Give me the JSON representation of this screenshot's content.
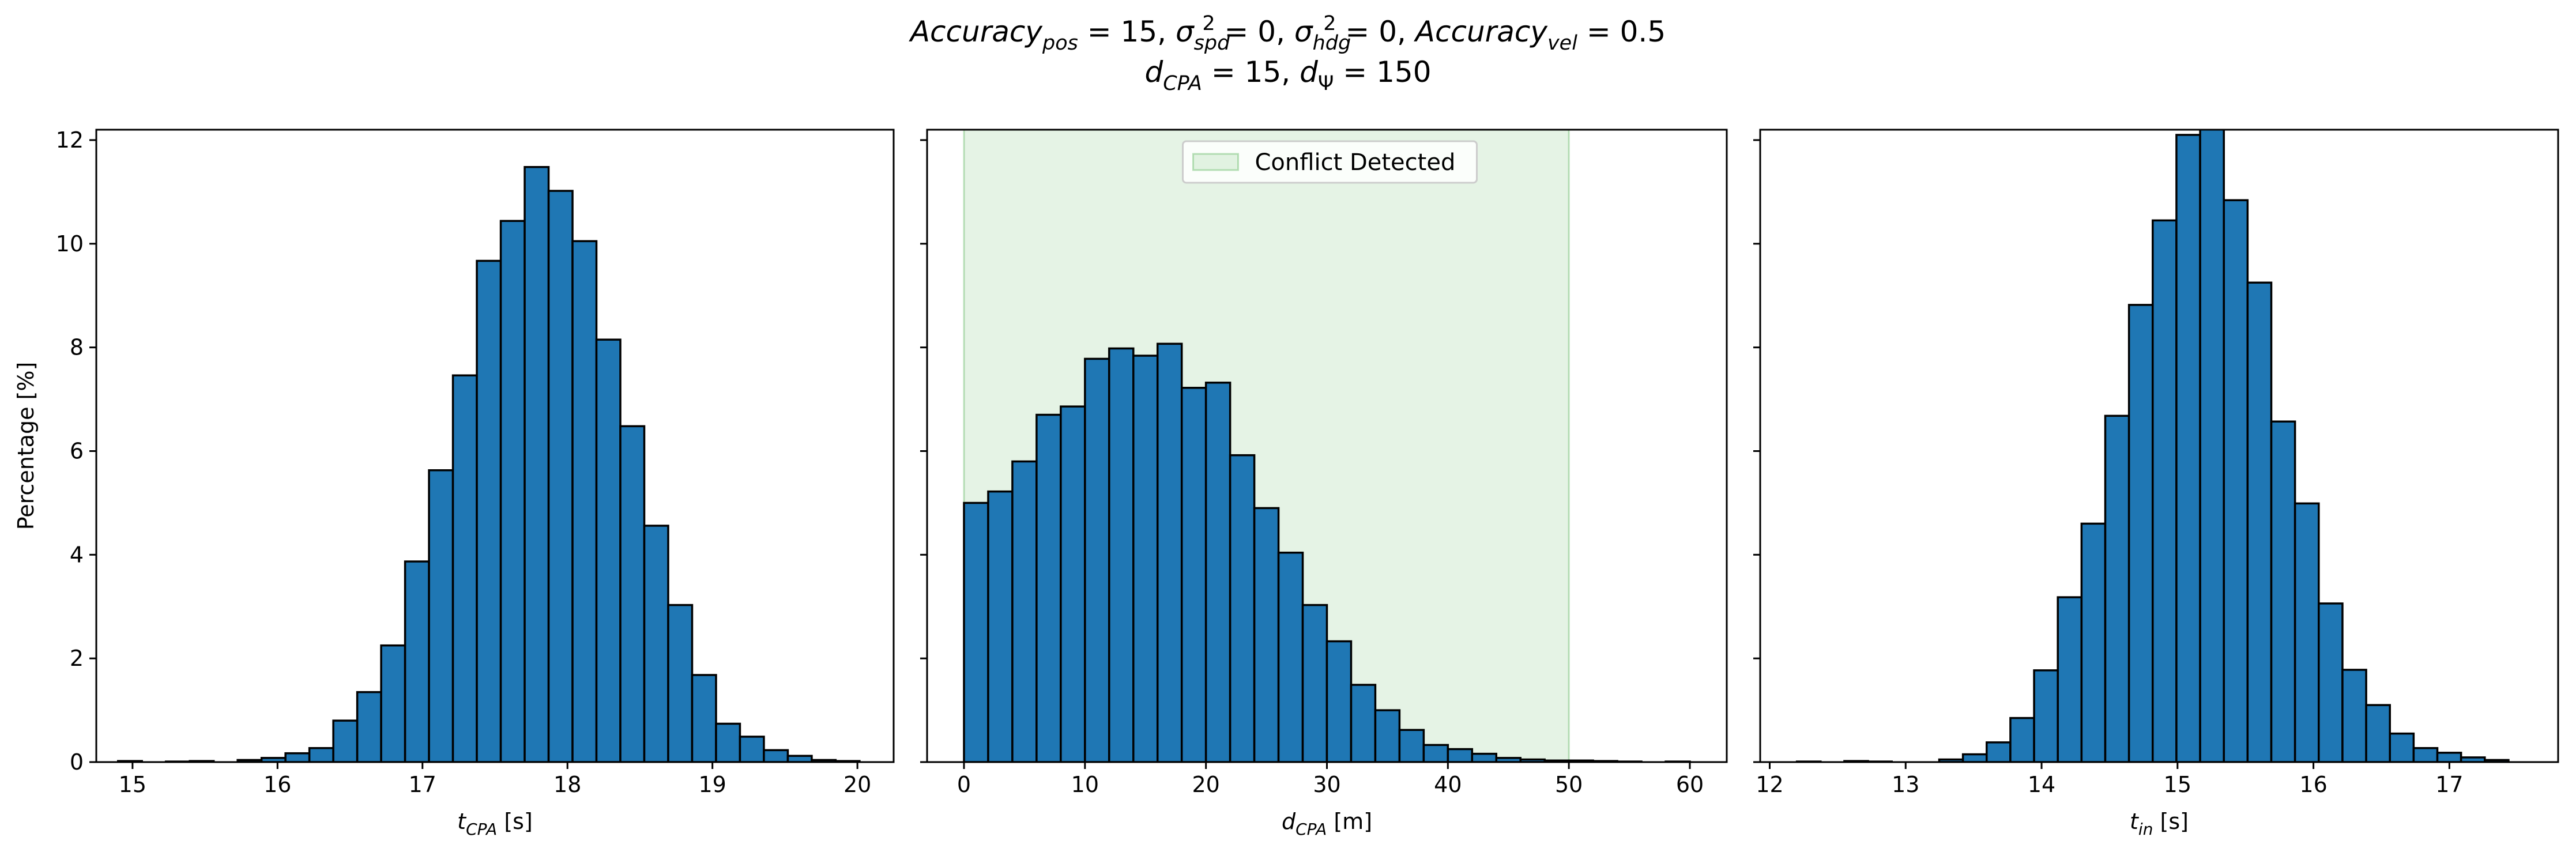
{
  "title": {
    "line1_parts": [
      {
        "t": "Accuracy",
        "style": "italic"
      },
      {
        "t": "pos",
        "style": "italic-sub"
      },
      {
        "t": " = 15, ",
        "style": "normal"
      },
      {
        "t": "σ",
        "style": "italic"
      },
      {
        "t": "spd",
        "style": "italic-sub"
      },
      {
        "t": "2",
        "style": "sup"
      },
      {
        "t": " = 0, ",
        "style": "normal"
      },
      {
        "t": "σ",
        "style": "italic"
      },
      {
        "t": "hdg",
        "style": "italic-sub"
      },
      {
        "t": "2",
        "style": "sup"
      },
      {
        "t": " = 0, ",
        "style": "normal"
      },
      {
        "t": "Accuracy",
        "style": "italic"
      },
      {
        "t": "vel",
        "style": "italic-sub"
      },
      {
        "t": " = 0.5",
        "style": "normal"
      }
    ],
    "line2_parts": [
      {
        "t": "d",
        "style": "italic"
      },
      {
        "t": "CPA",
        "style": "italic-sub"
      },
      {
        "t": " = 15, ",
        "style": "normal"
      },
      {
        "t": "d",
        "style": "italic"
      },
      {
        "t": "Ψ",
        "style": "sub"
      },
      {
        "t": " = 150",
        "style": "normal"
      }
    ]
  },
  "colors": {
    "bar": "#1f77b4",
    "span": "#2ca02c"
  },
  "chart_data": [
    {
      "type": "bar",
      "xlabel_main": "t",
      "xlabel_sub": "CPA",
      "xlabel_unit": " [s]",
      "ylabel": "Percentage [%]",
      "xlim": [
        14.75,
        20.25
      ],
      "ylim": [
        0,
        12.2
      ],
      "xticks": [
        15,
        16,
        17,
        18,
        19,
        20
      ],
      "yticks": [
        0,
        2,
        4,
        6,
        8,
        10,
        12
      ],
      "show_yticklabels": true,
      "bin_start": 14.9,
      "bin_width": 0.165,
      "values": [
        0.02,
        0.0,
        0.01,
        0.02,
        0.0,
        0.04,
        0.08,
        0.17,
        0.27,
        0.8,
        1.35,
        2.25,
        3.87,
        5.63,
        7.46,
        9.67,
        10.44,
        11.48,
        11.02,
        10.05,
        8.15,
        6.48,
        4.56,
        3.03,
        1.68,
        0.74,
        0.49,
        0.23,
        0.12,
        0.04,
        0.02
      ]
    },
    {
      "type": "bar",
      "xlabel_main": "d",
      "xlabel_sub": "CPA",
      "xlabel_unit": " [m]",
      "ylabel": "",
      "xlim": [
        -3.05,
        63.05
      ],
      "ylim": [
        0,
        12.2
      ],
      "xticks": [
        0,
        10,
        20,
        30,
        40,
        50,
        60
      ],
      "yticks": [
        0,
        2,
        4,
        6,
        8,
        10,
        12
      ],
      "show_yticklabels": false,
      "bin_start": 0,
      "bin_width": 2.0,
      "values": [
        5.0,
        5.22,
        5.8,
        6.7,
        6.86,
        7.78,
        7.98,
        7.84,
        8.07,
        7.22,
        7.32,
        5.92,
        4.9,
        4.04,
        3.03,
        2.33,
        1.49,
        1.0,
        0.62,
        0.33,
        0.25,
        0.16,
        0.08,
        0.05,
        0.03,
        0.03,
        0.02,
        0.01,
        0.0,
        0.01
      ],
      "span": [
        0,
        50
      ],
      "legend": "Conflict Detected",
      "legend_position": "upper center"
    },
    {
      "type": "bar",
      "xlabel_main": "t",
      "xlabel_sub": "in",
      "xlabel_unit": " [s]",
      "ylabel": "",
      "xlim": [
        11.93,
        17.8
      ],
      "ylim": [
        0,
        12.2
      ],
      "xticks": [
        12,
        13,
        14,
        15,
        16,
        17
      ],
      "yticks": [
        0,
        2,
        4,
        6,
        8,
        10,
        12
      ],
      "show_yticklabels": false,
      "bin_start": 12.2,
      "bin_width": 0.1745,
      "values": [
        0.01,
        0.0,
        0.02,
        0.01,
        0.0,
        0.0,
        0.05,
        0.15,
        0.38,
        0.85,
        1.77,
        3.18,
        4.6,
        6.68,
        8.82,
        10.45,
        12.1,
        12.35,
        10.84,
        9.25,
        6.57,
        4.99,
        3.06,
        1.78,
        1.1,
        0.55,
        0.27,
        0.18,
        0.09,
        0.04
      ]
    }
  ]
}
